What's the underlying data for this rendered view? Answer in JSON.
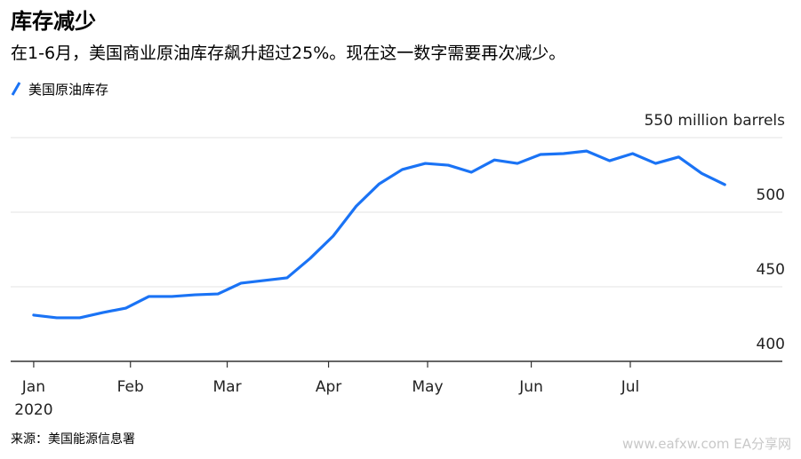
{
  "chart_data": {
    "type": "line",
    "title": "库存减少",
    "subtitle": "在1-6月，美国商业原油库存飙升超过25%。现在这一数字需要再次减少。",
    "source": "来源：美国能源信息署",
    "watermark": "www.eafxw.com  EA分享网",
    "year_label": "2020",
    "x": [
      0,
      1,
      2,
      3,
      4,
      5,
      6,
      7,
      8,
      9,
      10,
      11,
      12,
      13,
      14,
      15,
      16,
      17,
      18,
      19,
      20,
      21,
      22,
      23,
      24,
      25,
      26,
      27,
      28,
      29,
      30
    ],
    "series": [
      {
        "name": "美国原油库存",
        "color": "#1a73f5",
        "values": [
          431,
          429.2,
          429.2,
          432.7,
          435.7,
          443.5,
          443.5,
          444.6,
          445.2,
          452.4,
          454.2,
          456,
          469,
          484,
          504,
          519,
          528.6,
          532.7,
          531.5,
          526.8,
          535,
          532.7,
          538.7,
          539.3,
          541,
          534.5,
          539.3,
          532.7,
          537,
          526,
          518.5
        ]
      }
    ],
    "xlim": [
      -1,
      32.5
    ],
    "xticks": [
      {
        "value": 0,
        "label": "Jan"
      },
      {
        "value": 4.2,
        "label": "Feb"
      },
      {
        "value": 8.4,
        "label": "Mar"
      },
      {
        "value": 12.8,
        "label": "Apr"
      },
      {
        "value": 17.1,
        "label": "May"
      },
      {
        "value": 21.6,
        "label": "Jun"
      },
      {
        "value": 25.9,
        "label": "Jul"
      }
    ],
    "ylim": [
      400,
      550
    ],
    "yticks": [
      400,
      450,
      500,
      {
        "value": 550,
        "label": "550 million barrels"
      }
    ],
    "grid": true
  }
}
